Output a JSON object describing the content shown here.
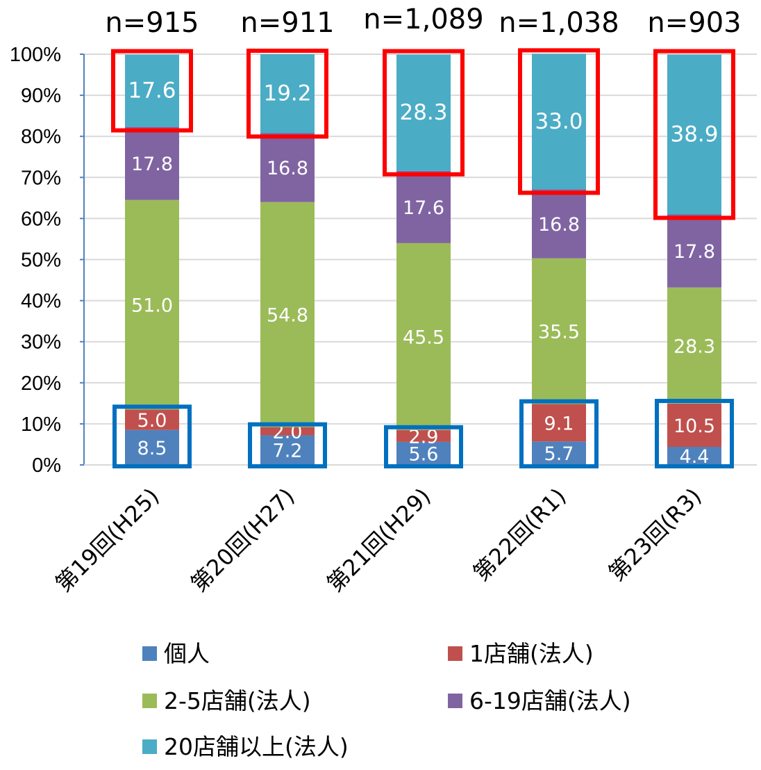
{
  "chart_data": {
    "type": "bar",
    "stacked": true,
    "categories": [
      "第19回(H25)",
      "第20回(H27)",
      "第21回(H29)",
      "第22回(R1)",
      "第23回(R3)"
    ],
    "sample_sizes": [
      "n=915",
      "n=911",
      "n=1,089",
      "n=1,038",
      "n=903"
    ],
    "series": [
      {
        "name": "個人",
        "color": "#4f81bd",
        "values": [
          8.5,
          7.2,
          5.6,
          5.7,
          4.4
        ],
        "labels": [
          "8.5",
          "7.2",
          "5.6",
          "5.7",
          "4.4"
        ]
      },
      {
        "name": "1店舗(法人)",
        "color": "#c0504d",
        "values": [
          5.0,
          2.0,
          2.9,
          9.1,
          10.5
        ],
        "labels": [
          "5.0",
          "2.0",
          "2.9",
          "9.1",
          "10.5"
        ]
      },
      {
        "name": "2-5店舗(法人)",
        "color": "#9bbb59",
        "values": [
          51.0,
          54.8,
          45.5,
          35.5,
          28.3
        ],
        "labels": [
          "51.0",
          "54.8",
          "45.5",
          "35.5",
          "28.3"
        ]
      },
      {
        "name": "6-19店舗(法人)",
        "color": "#8064a2",
        "values": [
          17.8,
          16.8,
          17.6,
          16.8,
          17.8
        ],
        "labels": [
          "17.8",
          "16.8",
          "17.6",
          "16.8",
          "17.8"
        ]
      },
      {
        "name": "20店舗以上(法人)",
        "color": "#4bacc6",
        "values": [
          17.6,
          19.2,
          28.3,
          33.0,
          38.9
        ],
        "labels": [
          "17.6",
          "19.2",
          "28.3",
          "33.0",
          "38.9"
        ]
      }
    ],
    "yticks": [
      "0%",
      "10%",
      "20%",
      "30%",
      "40%",
      "50%",
      "60%",
      "70%",
      "80%",
      "90%",
      "100%"
    ],
    "ylim": [
      0,
      100
    ],
    "grid": true,
    "legend_position": "bottom",
    "highlight_colors": {
      "top_group": "#ff0000",
      "bottom_group": "#0070c0"
    }
  }
}
